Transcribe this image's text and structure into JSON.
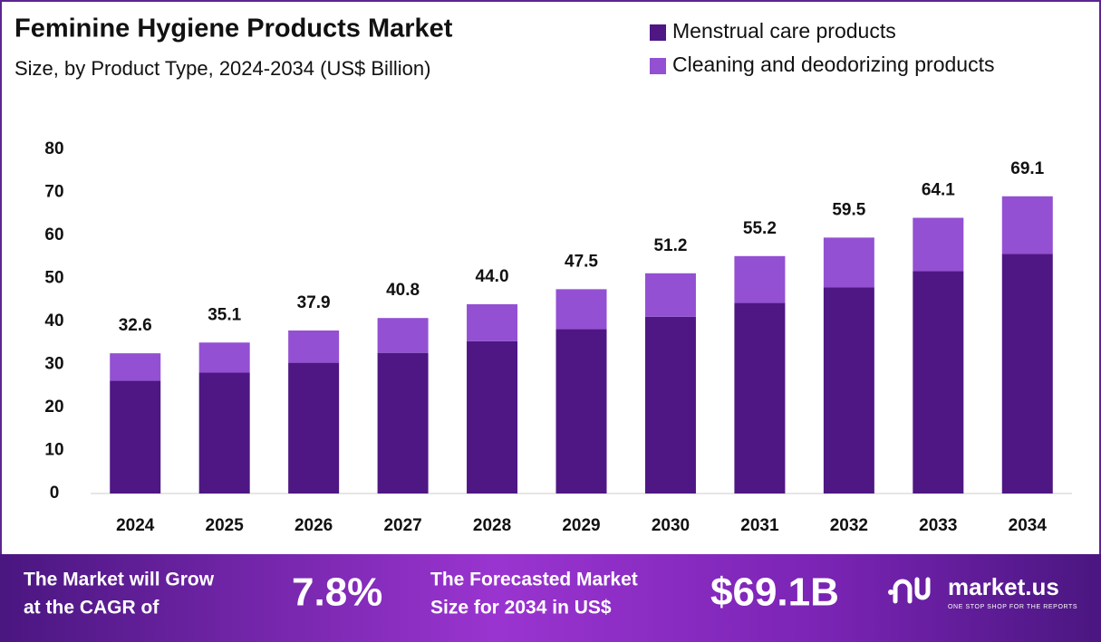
{
  "chart_data": {
    "type": "stacked-bar",
    "title": "Feminine Hygiene Products Market",
    "subtitle": "Size, by Product Type, 2024-2034 (US$ Billion)",
    "categories": [
      "2024",
      "2025",
      "2026",
      "2027",
      "2028",
      "2029",
      "2030",
      "2031",
      "2032",
      "2033",
      "2034"
    ],
    "series": [
      {
        "name": "Menstrual care products",
        "color": "#4e1784",
        "values": [
          26.2,
          28.1,
          30.4,
          32.7,
          35.4,
          38.2,
          41.1,
          44.3,
          47.9,
          51.7,
          55.7
        ]
      },
      {
        "name": "Cleaning and deodorizing products",
        "color": "#9350d2",
        "values": [
          6.4,
          7.0,
          7.5,
          8.1,
          8.6,
          9.3,
          10.1,
          10.9,
          11.6,
          12.4,
          13.4
        ]
      }
    ],
    "totals": {
      "values": [
        32.6,
        35.1,
        37.9,
        40.8,
        44.0,
        47.5,
        51.2,
        55.2,
        59.5,
        64.1,
        69.1
      ],
      "value_labels": [
        "32.6",
        "35.1",
        "37.9",
        "40.8",
        "44.0",
        "47.5",
        "51.2",
        "55.2",
        "59.5",
        "64.1",
        "69.1"
      ]
    },
    "ylim": [
      0,
      80
    ],
    "yticks": [
      0,
      10,
      20,
      30,
      40,
      50,
      60,
      70,
      80
    ],
    "grid": false,
    "legend": "top-right"
  },
  "banner": {
    "cagr_text": [
      "The Market will Grow",
      "at the CAGR of"
    ],
    "cagr_value": "7.8%",
    "forecast_text": [
      "The Forecasted Market",
      "Size for 2034 in US$"
    ],
    "forecast_value": "$69.1B",
    "brand": "market.us",
    "tagline": "ONE STOP SHOP FOR THE REPORTS"
  }
}
